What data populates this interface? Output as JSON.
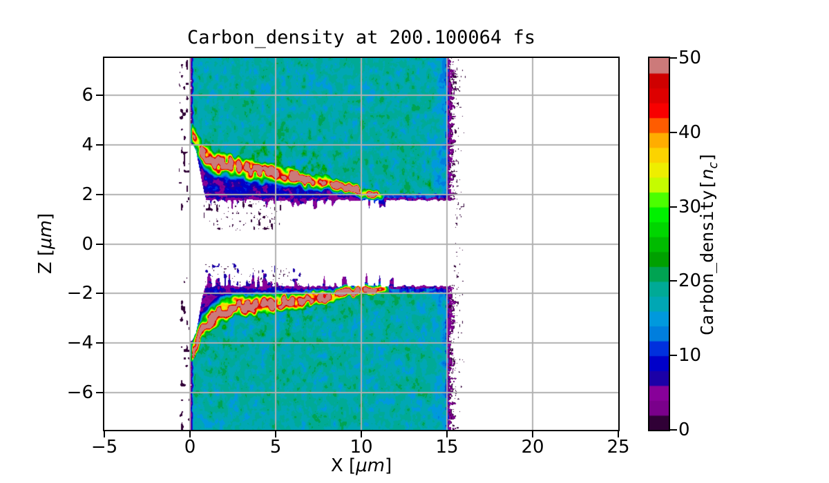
{
  "title": "Carbon_density at 200.100064 fs",
  "axes": {
    "xlabel": {
      "prefix": "X [",
      "unit": "μm",
      "suffix": "]"
    },
    "ylabel": {
      "prefix": "Z [",
      "unit": "μm",
      "suffix": "]"
    },
    "xticks": [
      {
        "value": -5,
        "label": "−5"
      },
      {
        "value": 0,
        "label": "0"
      },
      {
        "value": 5,
        "label": "5"
      },
      {
        "value": 10,
        "label": "10"
      },
      {
        "value": 15,
        "label": "15"
      },
      {
        "value": 20,
        "label": "20"
      },
      {
        "value": 25,
        "label": "25"
      }
    ],
    "yticks": [
      {
        "value": 6,
        "label": "6"
      },
      {
        "value": 4,
        "label": "4"
      },
      {
        "value": 2,
        "label": "2"
      },
      {
        "value": 0,
        "label": "0"
      },
      {
        "value": -2,
        "label": "−2"
      },
      {
        "value": -4,
        "label": "−4"
      },
      {
        "value": -6,
        "label": "−6"
      }
    ],
    "grid_color": "#b0b0b0"
  },
  "colorbar": {
    "label": {
      "prefix": "Carbon_density[",
      "var": "n",
      "sub": "c",
      "suffix": "]"
    },
    "ticks": [
      {
        "value": 0,
        "label": "0"
      },
      {
        "value": 10,
        "label": "10"
      },
      {
        "value": 20,
        "label": "20"
      },
      {
        "value": 30,
        "label": "30"
      },
      {
        "value": 40,
        "label": "40"
      },
      {
        "value": 50,
        "label": "50"
      }
    ],
    "vmin": 0,
    "vmax": 50,
    "n_levels": 25
  },
  "chart_data": {
    "type": "heatmap",
    "title": "Carbon_density at 200.100064 fs",
    "xlabel": "X [μm]",
    "ylabel": "Z [μm]",
    "xlim": [
      -5,
      25
    ],
    "ylim": [
      -7.5,
      7.5
    ],
    "grid": true,
    "colorbar_label": "Carbon_density[n_c]",
    "value_range": [
      0,
      50
    ],
    "colormap": "nipy_spectral",
    "colormap_stops": [
      [
        0.0,
        0.0,
        0.0,
        0.0
      ],
      [
        0.05,
        0.4667,
        0.0,
        0.5333
      ],
      [
        0.1,
        0.5333,
        0.0,
        0.6
      ],
      [
        0.15,
        0.0,
        0.0,
        0.6667
      ],
      [
        0.2,
        0.0,
        0.0,
        0.8667
      ],
      [
        0.25,
        0.0,
        0.4667,
        0.8667
      ],
      [
        0.3,
        0.0,
        0.6,
        0.8667
      ],
      [
        0.35,
        0.0,
        0.6667,
        0.6667
      ],
      [
        0.4,
        0.0,
        0.6667,
        0.5333
      ],
      [
        0.45,
        0.0,
        0.6,
        0.0
      ],
      [
        0.5,
        0.0,
        0.7333,
        0.0
      ],
      [
        0.55,
        0.0,
        0.8667,
        0.0
      ],
      [
        0.6,
        0.0,
        1.0,
        0.0
      ],
      [
        0.65,
        0.7333,
        1.0,
        0.0
      ],
      [
        0.7,
        0.9333,
        0.9333,
        0.0
      ],
      [
        0.75,
        1.0,
        0.8,
        0.0
      ],
      [
        0.8,
        1.0,
        0.6,
        0.0
      ],
      [
        0.85,
        1.0,
        0.0,
        0.0
      ],
      [
        0.9,
        0.8667,
        0.0,
        0.0
      ],
      [
        0.95,
        0.8,
        0.0,
        0.0
      ],
      [
        1.0,
        0.8,
        0.8,
        0.8
      ]
    ],
    "description": "Two laser-plasma target slabs of bulk carbon density ~18 nc spanning x=0..15.5 μm, separated by an evacuated channel |z| < ~1.7 μm. A high-density compressed ridge (~50 nc) runs along each inner surface from (0.2, ±4.4) μm to (11, ±1.8) μm, underlaid by a low-density (0-12 nc) cavity band. Ragged near-zero-density borders at x≈0 and x≈15.4.",
    "field": {
      "z_outer": 7.5,
      "bulk_density": 18,
      "bulk_noise": 9,
      "cavity_density": 7,
      "ridge_peak": 56,
      "slab_x_left": 0.0,
      "teal_right": 14.95,
      "black_right": 15.4,
      "top": {
        "seed": 0,
        "inner_flat": 1.76,
        "finger_amp": 1.2,
        "ridge_fade": [
          10.6,
          11.6
        ],
        "ridge": [
          [
            0.15,
            4.45
          ],
          [
            0.8,
            3.6
          ],
          [
            1.6,
            3.3
          ],
          [
            3.0,
            3.05
          ],
          [
            5.0,
            2.85
          ],
          [
            7.0,
            2.6
          ],
          [
            8.5,
            2.38
          ],
          [
            9.5,
            2.2
          ],
          [
            10.4,
            2.02
          ],
          [
            11.3,
            1.9
          ],
          [
            15.5,
            1.78
          ]
        ],
        "speck_x": [
          0.8,
          5.5
        ],
        "speck_z": 0.55,
        "speck_scale": 6.5,
        "speck_thresh": 0.83,
        "speck_v": 1.5
      },
      "bottom": {
        "seed": 777,
        "inner_flat": 1.7,
        "finger_amp": 1.5,
        "ridge_fade": [
          10.9,
          11.9
        ],
        "ridge": [
          [
            0.15,
            4.35
          ],
          [
            0.7,
            3.45
          ],
          [
            1.4,
            2.9
          ],
          [
            2.4,
            2.6
          ],
          [
            3.5,
            2.48
          ],
          [
            5.0,
            2.4
          ],
          [
            6.5,
            2.28
          ],
          [
            8.0,
            2.12
          ],
          [
            9.2,
            1.98
          ],
          [
            10.3,
            1.88
          ],
          [
            11.2,
            1.8
          ],
          [
            15.5,
            1.72
          ]
        ],
        "speck_x": [
          0.9,
          6.5
        ],
        "speck_z": 0.8,
        "speck_scale": 5.5,
        "speck_thresh": 0.78,
        "speck_v": 6.5
      }
    }
  }
}
